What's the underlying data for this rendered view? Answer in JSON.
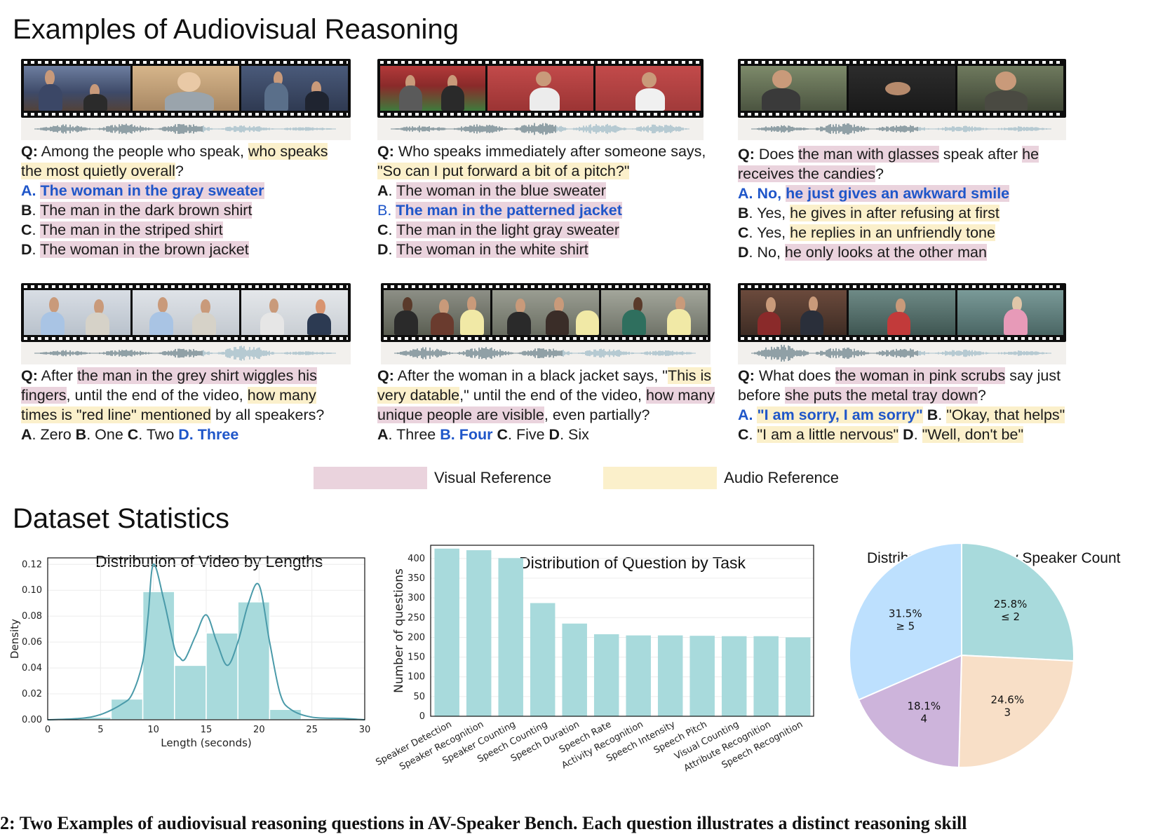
{
  "sections": {
    "examples_title": "Examples of Audiovisual Reasoning",
    "stats_title": "Dataset Statistics"
  },
  "examples": [
    {
      "q_prefix": "Q:",
      "q_lines": [
        [
          {
            "t": " Among the people who speak, ",
            "c": ""
          },
          {
            "t": "who speaks",
            "c": "aud"
          }
        ],
        [
          {
            "t": "the most quietly overall",
            "c": "aud"
          },
          {
            "t": "?",
            "c": ""
          }
        ]
      ],
      "options": [
        [
          {
            "t": "A.",
            "c": "correct"
          },
          {
            "t": " ",
            "c": ""
          },
          {
            "t": "The woman in the gray sweater",
            "c": "correct vis"
          }
        ],
        [
          {
            "t": "B",
            "c": "opt-letter"
          },
          {
            "t": ". ",
            "c": ""
          },
          {
            "t": "The man in the dark brown shirt",
            "c": "vis"
          }
        ],
        [
          {
            "t": "C",
            "c": "opt-letter"
          },
          {
            "t": ". ",
            "c": ""
          },
          {
            "t": "The man in the striped shirt",
            "c": "vis"
          }
        ],
        [
          {
            "t": "D",
            "c": "opt-letter"
          },
          {
            "t": ". ",
            "c": ""
          },
          {
            "t": "The woman in the brown jacket",
            "c": "vis"
          }
        ]
      ]
    },
    {
      "q_prefix": "Q:",
      "q_lines": [
        [
          {
            "t": " Who speaks immediately after someone says,",
            "c": ""
          }
        ],
        [
          {
            "t": "\"So can I put forward a bit of a pitch?\"",
            "c": "aud"
          }
        ]
      ],
      "options": [
        [
          {
            "t": "A",
            "c": "opt-letter"
          },
          {
            "t": ". ",
            "c": ""
          },
          {
            "t": "The woman in the blue sweater",
            "c": "vis"
          }
        ],
        [
          {
            "t": "B.",
            "c": "correct-letter"
          },
          {
            "t": " ",
            "c": ""
          },
          {
            "t": "The man in the patterned jacket",
            "c": "correct vis"
          }
        ],
        [
          {
            "t": "C",
            "c": "opt-letter"
          },
          {
            "t": ". ",
            "c": ""
          },
          {
            "t": "The man in the light gray sweater",
            "c": "vis"
          }
        ],
        [
          {
            "t": "D",
            "c": "opt-letter"
          },
          {
            "t": ". ",
            "c": ""
          },
          {
            "t": "The woman in the white shirt",
            "c": "vis"
          }
        ]
      ]
    },
    {
      "q_prefix": "Q:",
      "q_lines": [
        [
          {
            "t": "   Does ",
            "c": ""
          },
          {
            "t": "the man with glasses",
            "c": "vis"
          },
          {
            "t": " speak after ",
            "c": ""
          },
          {
            "t": "he",
            "c": "vis"
          }
        ],
        [
          {
            "t": "receives the candies",
            "c": "vis"
          },
          {
            "t": "?",
            "c": ""
          }
        ]
      ],
      "options": [
        [
          {
            "t": "A. No, ",
            "c": "correct"
          },
          {
            "t": "he just gives an awkward smile",
            "c": "correct vis"
          }
        ],
        [
          {
            "t": "B",
            "c": "opt-letter"
          },
          {
            "t": ". Yes, ",
            "c": ""
          },
          {
            "t": "he gives in after refusing at first",
            "c": "aud"
          }
        ],
        [
          {
            "t": "C",
            "c": "opt-letter"
          },
          {
            "t": ". Yes, ",
            "c": ""
          },
          {
            "t": "he replies in an unfriendly tone",
            "c": "aud"
          }
        ],
        [
          {
            "t": "D",
            "c": "opt-letter"
          },
          {
            "t": ". No, ",
            "c": ""
          },
          {
            "t": "he only looks at the other man",
            "c": "vis"
          }
        ]
      ]
    },
    {
      "q_prefix": "Q:",
      "q_lines": [
        [
          {
            "t": " After ",
            "c": ""
          },
          {
            "t": "the man in the grey shirt wiggles his",
            "c": "vis"
          }
        ],
        [
          {
            "t": "fingers",
            "c": "vis"
          },
          {
            "t": ", until the end of the video, ",
            "c": ""
          },
          {
            "t": "how many",
            "c": "aud"
          }
        ],
        [
          {
            "t": "times is \"red line\" mentioned",
            "c": "aud"
          },
          {
            "t": " by all speakers?",
            "c": ""
          }
        ]
      ],
      "options": [
        [
          {
            "t": "A",
            "c": "opt-letter"
          },
          {
            "t": ". Zero     ",
            "c": ""
          },
          {
            "t": "B",
            "c": "opt-letter"
          },
          {
            "t": ". One     ",
            "c": ""
          },
          {
            "t": "C",
            "c": "opt-letter"
          },
          {
            "t": ". Two     ",
            "c": ""
          },
          {
            "t": "D. Three",
            "c": "correct"
          }
        ]
      ]
    },
    {
      "q_prefix": "Q:",
      "q_lines": [
        [
          {
            "t": "  After the woman in a black jacket says, \"",
            "c": ""
          },
          {
            "t": "This is",
            "c": "aud"
          }
        ],
        [
          {
            "t": "very datable",
            "c": "aud"
          },
          {
            "t": ",\" until the end of the video, ",
            "c": ""
          },
          {
            "t": "how many",
            "c": "vis"
          }
        ],
        [
          {
            "t": "unique people are visible",
            "c": "vis"
          },
          {
            "t": ", even partially?",
            "c": ""
          }
        ]
      ],
      "options": [
        [
          {
            "t": "A",
            "c": "opt-letter"
          },
          {
            "t": ". Three  ",
            "c": ""
          },
          {
            "t": "B. Four",
            "c": "correct"
          },
          {
            "t": " ",
            "c": ""
          },
          {
            "t": "C",
            "c": "opt-letter"
          },
          {
            "t": ". Five ",
            "c": ""
          },
          {
            "t": "D",
            "c": "opt-letter"
          },
          {
            "t": ". Six",
            "c": ""
          }
        ]
      ]
    },
    {
      "q_prefix": "Q:",
      "q_lines": [
        [
          {
            "t": " What does ",
            "c": ""
          },
          {
            "t": "the woman in pink scrubs",
            "c": "vis"
          },
          {
            "t": " say just",
            "c": ""
          }
        ],
        [
          {
            "t": "before ",
            "c": ""
          },
          {
            "t": "she puts the metal tray down",
            "c": "vis"
          },
          {
            "t": "?",
            "c": ""
          }
        ]
      ],
      "options": [
        [
          {
            "t": "A. ",
            "c": "correct"
          },
          {
            "t": "\"I am sorry, I am sorry\"",
            "c": "correct aud"
          },
          {
            "t": "   ",
            "c": ""
          },
          {
            "t": "B",
            "c": "opt-letter"
          },
          {
            "t": ". ",
            "c": ""
          },
          {
            "t": "\"Okay, that helps\"",
            "c": "aud"
          }
        ],
        [
          {
            "t": "C",
            "c": "opt-letter"
          },
          {
            "t": ". ",
            "c": ""
          },
          {
            "t": "\"I am a little nervous\"",
            "c": "aud"
          },
          {
            "t": "      ",
            "c": ""
          },
          {
            "t": "D",
            "c": "opt-letter"
          },
          {
            "t": ". ",
            "c": ""
          },
          {
            "t": "\"Well, don't be\"",
            "c": "aud"
          }
        ]
      ]
    }
  ],
  "legend": {
    "visual": "Visual Reference",
    "audio": "Audio Reference",
    "visual_color": "#ead3dd",
    "audio_color": "#fbf0cb"
  },
  "chart_data": [
    {
      "type": "bar",
      "title": "Distribution of Video by Lengths",
      "xlabel": "Length (seconds)",
      "ylabel": "Density",
      "xlim": [
        0,
        30
      ],
      "ylim": [
        0,
        0.125
      ],
      "xticks": [
        "0",
        "5",
        "10",
        "15",
        "20",
        "25",
        "30"
      ],
      "yticks": [
        "0.00",
        "0.02",
        "0.04",
        "0.06",
        "0.08",
        "0.10",
        "0.12"
      ],
      "bins": [
        {
          "x0": 3,
          "x1": 6,
          "value": 0.002
        },
        {
          "x0": 6,
          "x1": 9,
          "value": 0.016
        },
        {
          "x0": 9,
          "x1": 12,
          "value": 0.099
        },
        {
          "x0": 12,
          "x1": 15,
          "value": 0.042
        },
        {
          "x0": 15,
          "x1": 18,
          "value": 0.067
        },
        {
          "x0": 18,
          "x1": 21,
          "value": 0.091
        },
        {
          "x0": 21,
          "x1": 24,
          "value": 0.008
        },
        {
          "x0": 24,
          "x1": 27,
          "value": 0.001
        }
      ],
      "kde": [
        [
          0,
          0
        ],
        [
          3,
          0.001
        ],
        [
          5,
          0.004
        ],
        [
          7,
          0.012
        ],
        [
          8,
          0.02
        ],
        [
          9,
          0.045
        ],
        [
          9.5,
          0.08
        ],
        [
          10,
          0.12
        ],
        [
          11,
          0.092
        ],
        [
          12,
          0.055
        ],
        [
          12.5,
          0.048
        ],
        [
          13,
          0.047
        ],
        [
          14,
          0.065
        ],
        [
          15,
          0.081
        ],
        [
          16,
          0.06
        ],
        [
          17,
          0.042
        ],
        [
          18,
          0.06
        ],
        [
          19,
          0.09
        ],
        [
          20,
          0.104
        ],
        [
          21,
          0.06
        ],
        [
          22,
          0.02
        ],
        [
          23,
          0.008
        ],
        [
          25,
          0.002
        ],
        [
          28,
          0.001
        ],
        [
          30,
          0
        ]
      ],
      "color": "#a8dadc",
      "line_color": "#4a9aa9"
    },
    {
      "type": "bar",
      "title": "Distribution of Question by Task",
      "ylabel": "Number of questions",
      "ylim": [
        0,
        430
      ],
      "yticks": [
        "0",
        "50",
        "100",
        "150",
        "200",
        "250",
        "300",
        "350",
        "400"
      ],
      "categories": [
        "Speaker Detection",
        "Speaker Recognition",
        "Speaker Counting",
        "Speech Counting",
        "Speech Duration",
        "Speech Rate",
        "Activity Recognition",
        "Speech Intensity",
        "Speech Pitch",
        "Visual Counting",
        "Attribute Recognition",
        "Speech Recognition"
      ],
      "values": [
        425,
        421,
        401,
        287,
        235,
        208,
        205,
        205,
        204,
        203,
        203,
        200
      ],
      "color": "#a8dadc"
    },
    {
      "type": "pie",
      "title": "Distribution of Video by Speaker Count",
      "slices": [
        {
          "label": "≤ 2",
          "pct": "25.8%",
          "value": 25.8,
          "color": "#a8dadc"
        },
        {
          "label": "3",
          "pct": "24.6%",
          "value": 24.6,
          "color": "#f8dfc7"
        },
        {
          "label": "4",
          "pct": "18.1%",
          "value": 18.1,
          "color": "#cdb4db"
        },
        {
          "label": "≥ 5",
          "pct": "31.5%",
          "value": 31.5,
          "color": "#bde0fe"
        }
      ]
    }
  ],
  "caption": "2: Two Examples of audiovisual reasoning questions in AV-Speaker Bench. Each question illustrates a distinct reasoning skill"
}
